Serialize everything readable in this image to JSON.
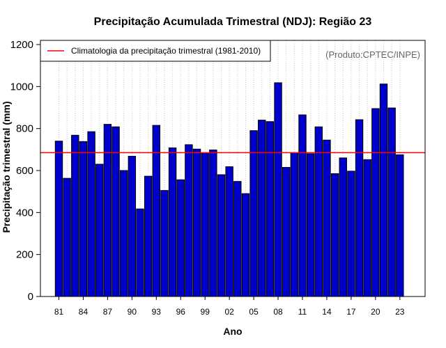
{
  "colors": {
    "bar_fill": "#0000cc",
    "bar_stroke": "#000000",
    "climatology_line": "#ff0000",
    "grid": "#c8c8c8",
    "credit": "#666666"
  },
  "chart_data": {
    "type": "bar",
    "title": "Precipitação Acumulada Trimestral (NDJ): Região 23",
    "xlabel": "Ano",
    "ylabel": "Precipitação trimestral (mm)",
    "credit": "(Produto:CPTEC/INPE)",
    "legend": {
      "position": "top-left",
      "label": "Climatologia da precipitação trimestral (1981-2010)"
    },
    "climatology": 685,
    "ylim": [
      0,
      1220
    ],
    "yticks": [
      0,
      200,
      400,
      600,
      800,
      1000,
      1200
    ],
    "x_tick_labels": [
      "81",
      "84",
      "87",
      "90",
      "93",
      "96",
      "99",
      "02",
      "05",
      "08",
      "11",
      "14",
      "17",
      "20",
      "23"
    ],
    "x_tick_years": [
      1981,
      1984,
      1987,
      1990,
      1993,
      1996,
      1999,
      2002,
      2005,
      2008,
      2011,
      2014,
      2017,
      2020,
      2023
    ],
    "grid": "vertical dotted per year",
    "years": [
      1981,
      1982,
      1983,
      1984,
      1985,
      1986,
      1987,
      1988,
      1989,
      1990,
      1991,
      1992,
      1993,
      1994,
      1995,
      1996,
      1997,
      1998,
      1999,
      2000,
      2001,
      2002,
      2003,
      2004,
      2005,
      2006,
      2007,
      2008,
      2009,
      2010,
      2011,
      2012,
      2013,
      2014,
      2015,
      2016,
      2017,
      2018,
      2019,
      2020,
      2021,
      2022,
      2023
    ],
    "values": [
      740,
      563,
      768,
      738,
      785,
      630,
      820,
      808,
      600,
      668,
      417,
      573,
      815,
      505,
      708,
      556,
      723,
      702,
      684,
      698,
      580,
      618,
      548,
      490,
      790,
      840,
      833,
      1018,
      615,
      685,
      865,
      680,
      808,
      745,
      585,
      660,
      597,
      842,
      652,
      895,
      1012,
      898,
      675
    ]
  }
}
